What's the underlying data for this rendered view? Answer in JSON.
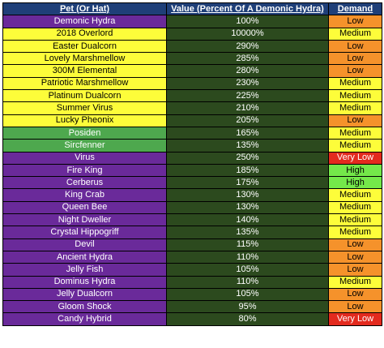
{
  "headers": [
    "Pet (Or Hat)",
    "Value (Percent Of A Demonic Hydra)",
    "Demand"
  ],
  "colors": {
    "header_bg": "#1f3f78",
    "value_bg": "#2c4a1e",
    "pet_purple": "#6a2a9a",
    "pet_yellow": "#fdfd3a",
    "pet_green": "#4ea84e",
    "demand_low": "#f5922b",
    "demand_medium": "#fdfd3a",
    "demand_high": "#74e84a",
    "demand_very_low": "#e32a1e"
  },
  "rows": [
    {
      "pet": "Demonic Hydra",
      "value": "100%",
      "demand": "Low",
      "pet_color": "purple",
      "demand_level": "low"
    },
    {
      "pet": "2018 Overlord",
      "value": "10000%",
      "demand": "Medium",
      "pet_color": "yellow",
      "demand_level": "medium"
    },
    {
      "pet": "Easter Dualcorn",
      "value": "290%",
      "demand": "Low",
      "pet_color": "yellow",
      "demand_level": "low"
    },
    {
      "pet": "Lovely Marshmellow",
      "value": "285%",
      "demand": "Low",
      "pet_color": "yellow",
      "demand_level": "low"
    },
    {
      "pet": "300M Elemental",
      "value": "280%",
      "demand": "Low",
      "pet_color": "yellow",
      "demand_level": "low"
    },
    {
      "pet": "Patriotic Marshmellow",
      "value": "230%",
      "demand": "Medium",
      "pet_color": "yellow",
      "demand_level": "medium"
    },
    {
      "pet": "Platinum Dualcorn",
      "value": "225%",
      "demand": "Medium",
      "pet_color": "yellow",
      "demand_level": "medium"
    },
    {
      "pet": "Summer Virus",
      "value": "210%",
      "demand": "Medium",
      "pet_color": "yellow",
      "demand_level": "medium"
    },
    {
      "pet": "Lucky Pheonix",
      "value": "205%",
      "demand": "Low",
      "pet_color": "yellow",
      "demand_level": "low"
    },
    {
      "pet": "Posiden",
      "value": "165%",
      "demand": "Medium",
      "pet_color": "green",
      "demand_level": "medium"
    },
    {
      "pet": "Sircfenner",
      "value": "135%",
      "demand": "Medium",
      "pet_color": "green",
      "demand_level": "medium"
    },
    {
      "pet": "Virus",
      "value": "250%",
      "demand": "Very Low",
      "pet_color": "purple",
      "demand_level": "very_low"
    },
    {
      "pet": "Fire King",
      "value": "185%",
      "demand": "High",
      "pet_color": "purple",
      "demand_level": "high"
    },
    {
      "pet": "Cerberus",
      "value": "175%",
      "demand": "High",
      "pet_color": "purple",
      "demand_level": "high"
    },
    {
      "pet": "King Crab",
      "value": "130%",
      "demand": "Medium",
      "pet_color": "purple",
      "demand_level": "medium"
    },
    {
      "pet": "Queen Bee",
      "value": "130%",
      "demand": "Medium",
      "pet_color": "purple",
      "demand_level": "medium"
    },
    {
      "pet": "Night Dweller",
      "value": "140%",
      "demand": "Medium",
      "pet_color": "purple",
      "demand_level": "medium"
    },
    {
      "pet": "Crystal Hippogriff",
      "value": "135%",
      "demand": "Medium",
      "pet_color": "purple",
      "demand_level": "medium"
    },
    {
      "pet": "Devil",
      "value": "115%",
      "demand": "Low",
      "pet_color": "purple",
      "demand_level": "low"
    },
    {
      "pet": "Ancient Hydra",
      "value": "110%",
      "demand": "Low",
      "pet_color": "purple",
      "demand_level": "low"
    },
    {
      "pet": "Jelly Fish",
      "value": "105%",
      "demand": "Low",
      "pet_color": "purple",
      "demand_level": "low"
    },
    {
      "pet": "Dominus Hydra",
      "value": "110%",
      "demand": "Medium",
      "pet_color": "purple",
      "demand_level": "medium"
    },
    {
      "pet": "Jelly Dualcorn",
      "value": "105%",
      "demand": "Low",
      "pet_color": "purple",
      "demand_level": "low"
    },
    {
      "pet": "Gloom Shock",
      "value": "95%",
      "demand": "Low",
      "pet_color": "purple",
      "demand_level": "low"
    },
    {
      "pet": "Candy Hybrid",
      "value": "80%",
      "demand": "Very Low",
      "pet_color": "purple",
      "demand_level": "very_low"
    }
  ]
}
